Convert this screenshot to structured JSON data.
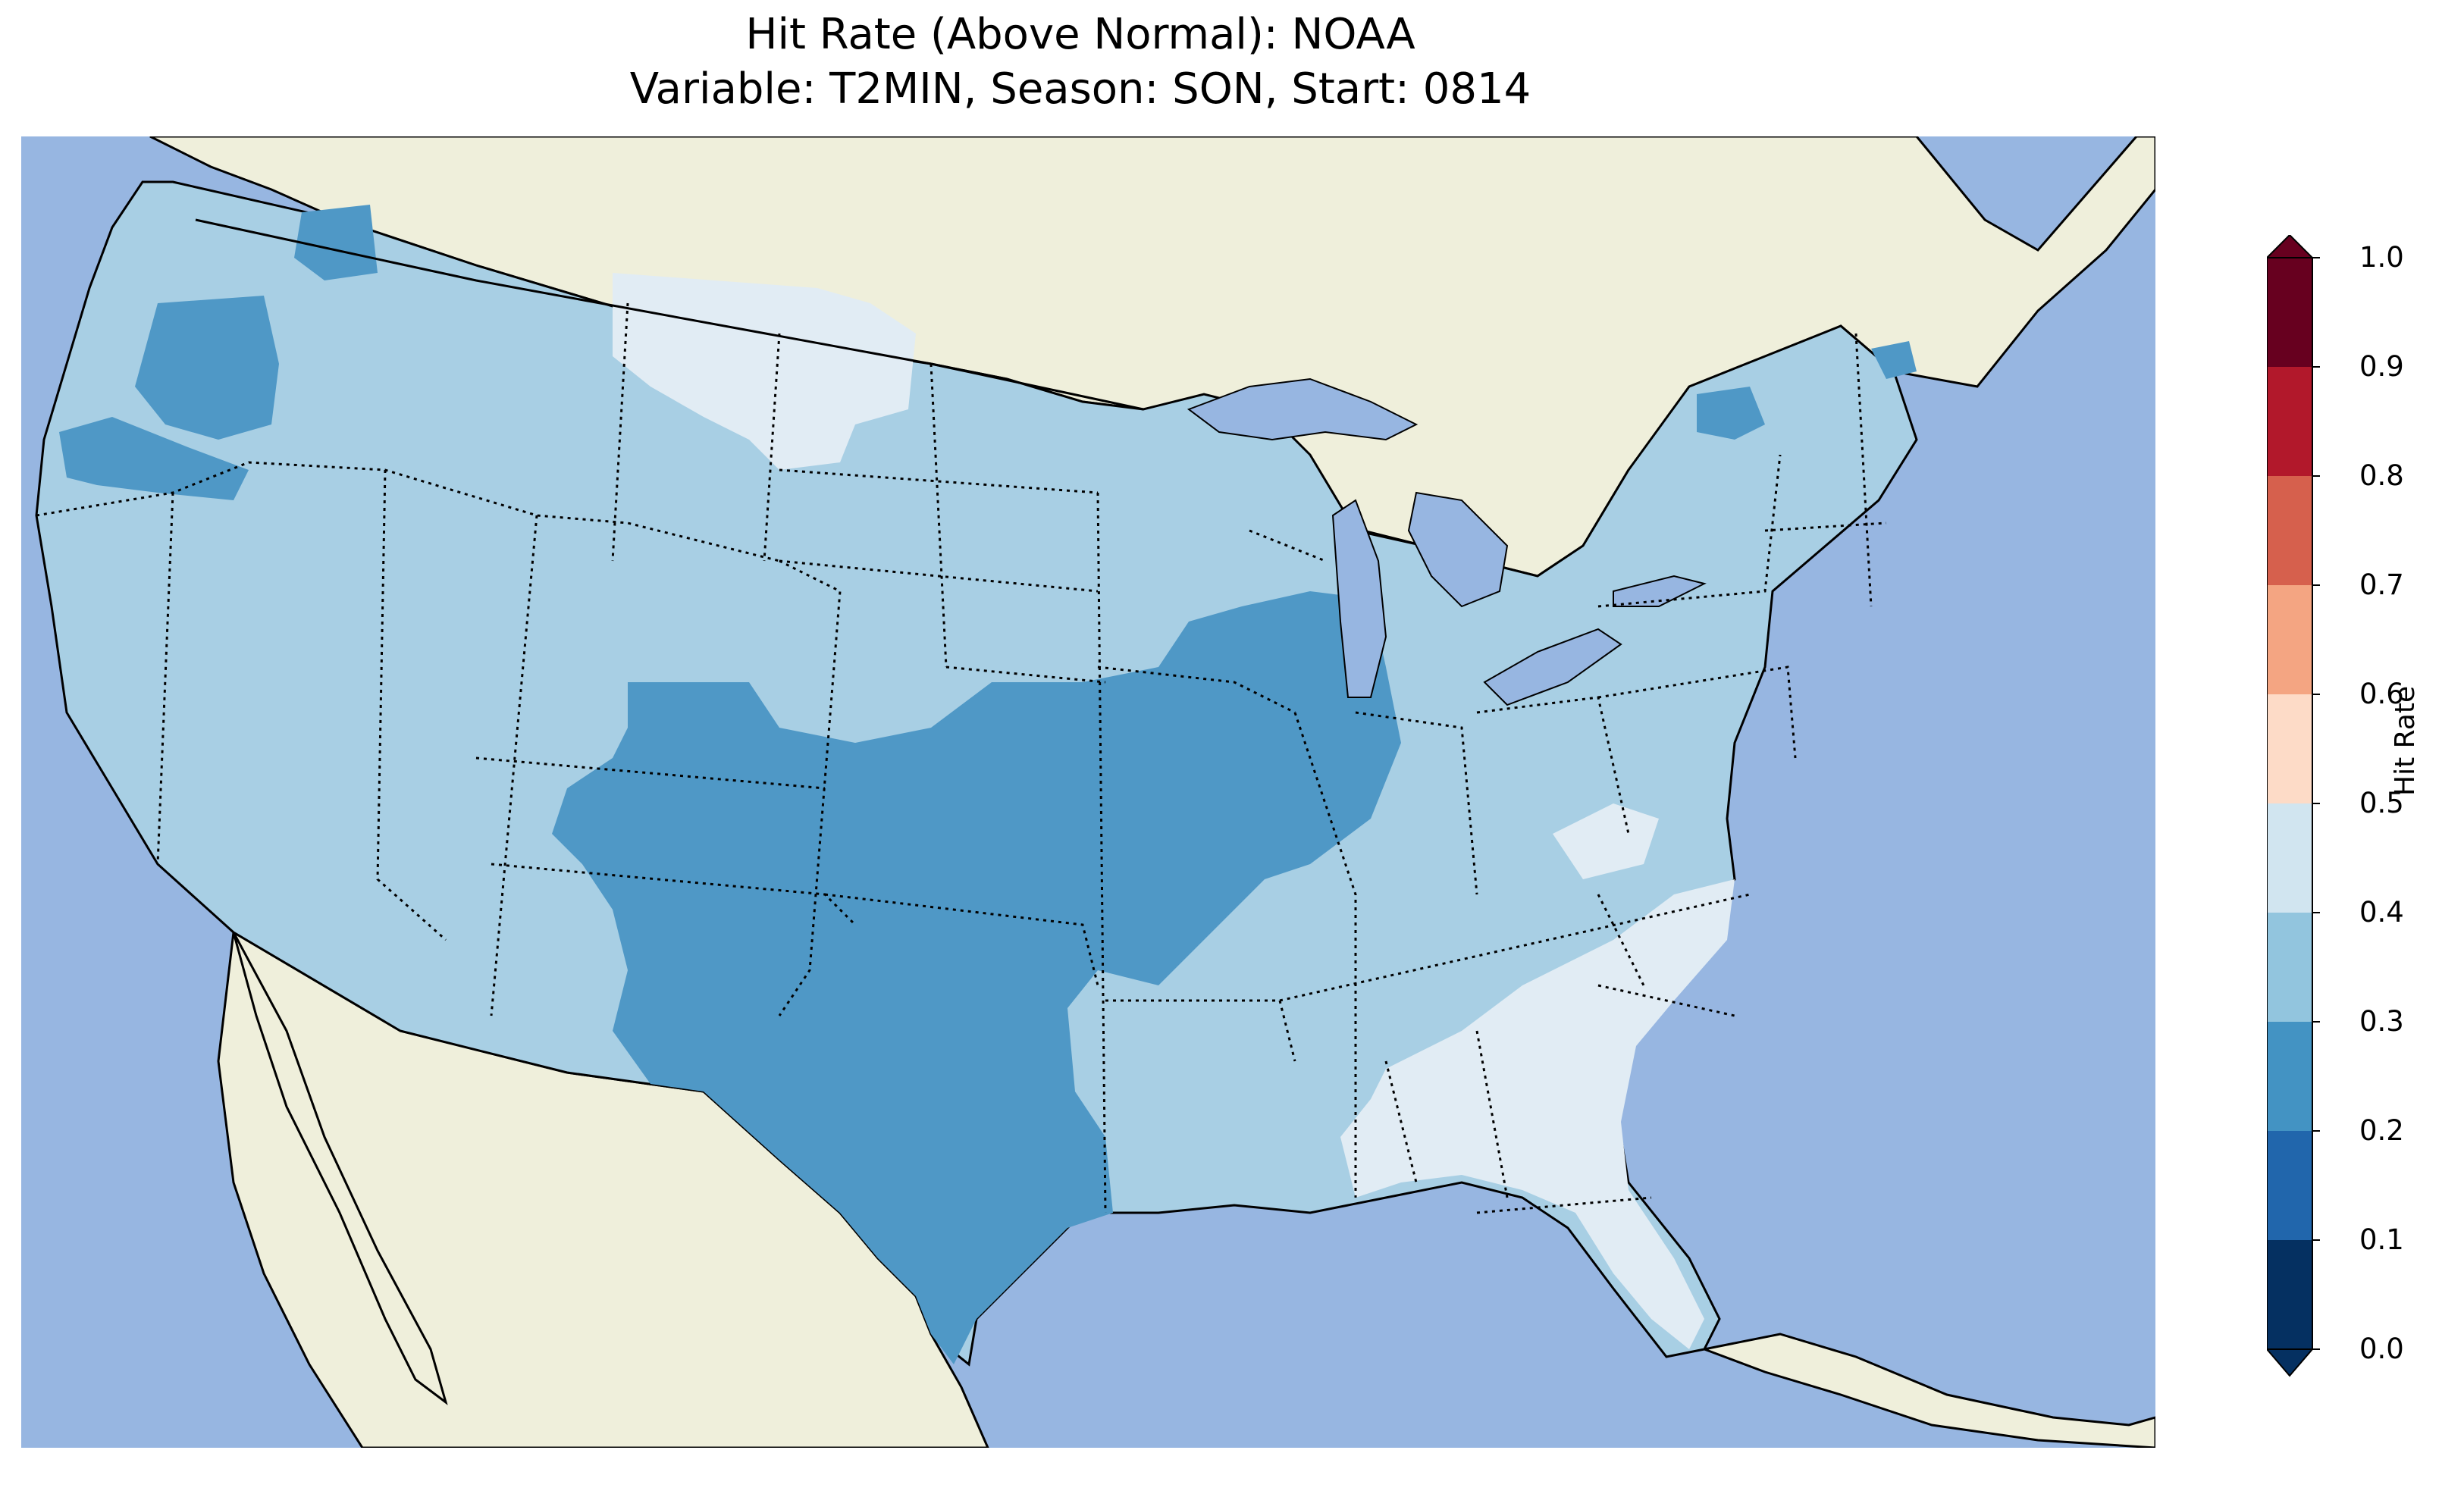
{
  "title": {
    "line1": "Hit Rate (Above Normal): NOAA",
    "line2": "Variable: T2MIN, Season: SON, Start: 0814"
  },
  "colorbar": {
    "label": "Hit Rate",
    "ticks": [
      "0.0",
      "0.1",
      "0.2",
      "0.3",
      "0.4",
      "0.5",
      "0.6",
      "0.7",
      "0.8",
      "0.9",
      "1.0"
    ],
    "extend": "both",
    "colors": [
      "#053061",
      "#2166ac",
      "#4393c3",
      "#92c5de",
      "#d1e5f0",
      "#fddbc7",
      "#f4a582",
      "#d6604d",
      "#b2182b",
      "#67001f"
    ]
  },
  "map": {
    "projection": "Lambert conformal, continental US",
    "ocean_color": "#97b6e1",
    "land_color": "#efefdb",
    "bin_colors": {
      "0.2-0.3": "#4f98c6",
      "0.3-0.4": "#a8cfe4",
      "0.4-0.5": "#e1ecf4"
    },
    "regions": [
      {
        "name": "Western and central US",
        "hit_rate_bin": "0.3-0.4"
      },
      {
        "name": "Pacific Northwest / Oregon",
        "hit_rate_bin": "0.2-0.3"
      },
      {
        "name": "Southern Plains, Texas, Oklahoma, Kansas, Missouri, Illinois",
        "hit_rate_bin": "0.2-0.3"
      },
      {
        "name": "Montana / Wyoming high plains",
        "hit_rate_bin": "0.4-0.5"
      },
      {
        "name": "Southeast: Georgia, South Carolina, Florida",
        "hit_rate_bin": "0.4-0.5"
      },
      {
        "name": "Northeast: New England, New York",
        "hit_rate_bin": "0.3-0.4"
      }
    ]
  }
}
